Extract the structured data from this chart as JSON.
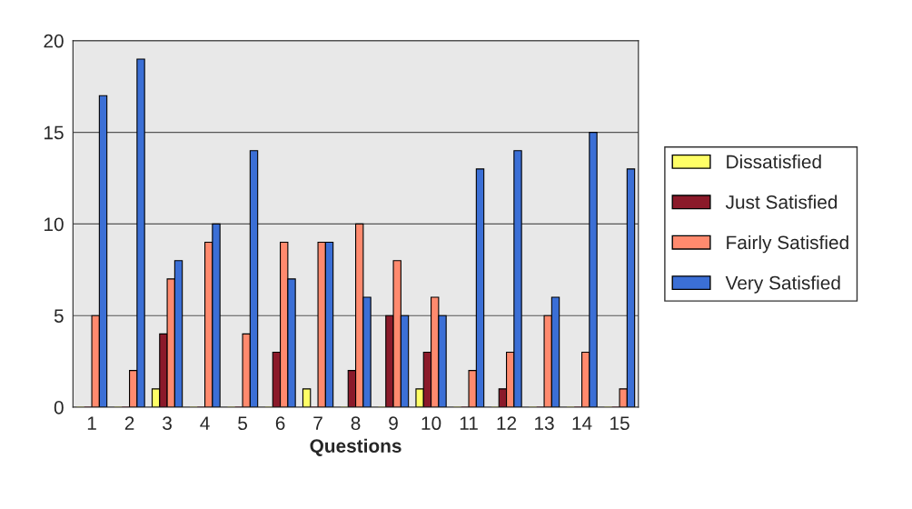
{
  "chart_data": {
    "type": "bar",
    "xlabel": "Questions",
    "categories": [
      "1",
      "2",
      "3",
      "4",
      "5",
      "6",
      "7",
      "8",
      "9",
      "10",
      "11",
      "12",
      "13",
      "14",
      "15"
    ],
    "series": [
      {
        "name": "Dissatisfied",
        "color": "#ffff66",
        "values": [
          0,
          0,
          1,
          0,
          0,
          0,
          1,
          0,
          0,
          1,
          0,
          0,
          0,
          0,
          0
        ]
      },
      {
        "name": "Just Satisfied",
        "color": "#8b1a2a",
        "values": [
          0,
          0,
          4,
          0,
          0,
          3,
          0,
          2,
          5,
          3,
          0,
          1,
          0,
          0,
          0
        ]
      },
      {
        "name": "Fairly Satisfied",
        "color": "#ff8a6e",
        "values": [
          5,
          2,
          7,
          9,
          4,
          9,
          9,
          10,
          8,
          6,
          2,
          3,
          5,
          3,
          1
        ]
      },
      {
        "name": "Very Satisfied",
        "color": "#3b6fd6",
        "values": [
          17,
          19,
          8,
          10,
          14,
          7,
          9,
          6,
          5,
          5,
          13,
          14,
          6,
          15,
          13
        ]
      }
    ],
    "ylim": [
      0,
      20
    ],
    "yticks": [
      0,
      5,
      10,
      15,
      20
    ],
    "grid": "y",
    "legend": "right"
  }
}
